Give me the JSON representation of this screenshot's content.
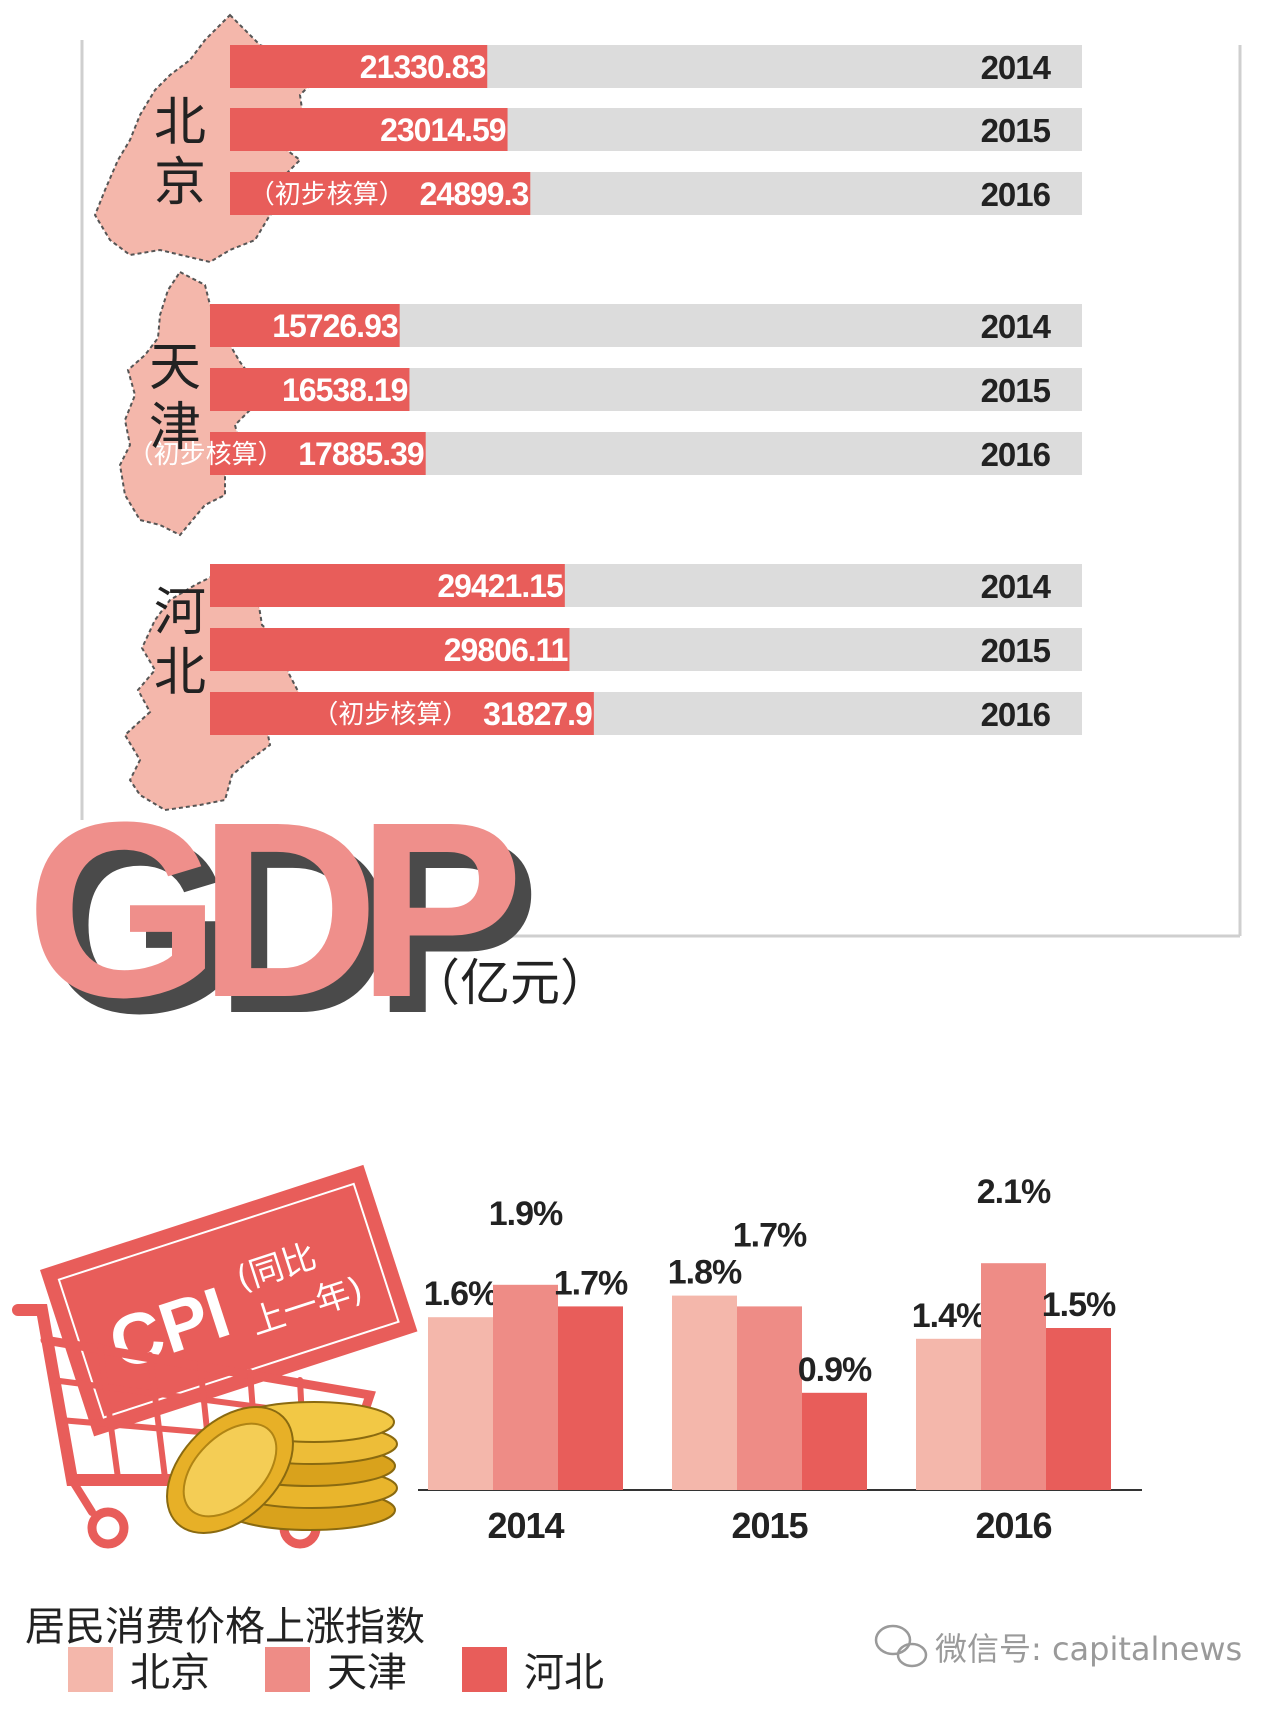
{
  "colors": {
    "beijing": "#f4b7ab",
    "tianjin": "#ee8c86",
    "hebei": "#e85d5a",
    "bar_track": "#dcdcdc",
    "gdp_fill": "#ef8f8b",
    "gdp_shadow": "#4a4a4a",
    "frame": "#cfcfcf",
    "text_dark": "#222222",
    "logo_gray": "#999999"
  },
  "gdp": {
    "title": "GDP",
    "unit": "（亿元）",
    "preliminary_label": "（初步核算）",
    "regions": [
      {
        "name": "北京",
        "chars": [
          "北",
          "京"
        ]
      },
      {
        "name": "天津",
        "chars": [
          "天",
          "津"
        ]
      },
      {
        "name": "河北",
        "chars": [
          "河",
          "北"
        ]
      }
    ]
  },
  "cpi": {
    "title": "CPI",
    "subtitle_line1": "(同比",
    "subtitle_line2": "上一年)",
    "caption": "居民消费价格上涨指数"
  },
  "legend": [
    {
      "name": "北京",
      "color": "#f4b7ab"
    },
    {
      "name": "天津",
      "color": "#ee8c86"
    },
    {
      "name": "河北",
      "color": "#e85d5a"
    }
  ],
  "watermark": {
    "text": "微信号: capitalnews",
    "icon": "wechat-icon"
  },
  "chart_data": [
    {
      "type": "bar",
      "orientation": "horizontal",
      "title": "GDP",
      "unit": "（亿元）",
      "series": [
        {
          "name": "北京",
          "rows": [
            {
              "year": "2014",
              "value": 21330.83,
              "label": "21330.83",
              "note": ""
            },
            {
              "year": "2015",
              "value": 23014.59,
              "label": "23014.59",
              "note": ""
            },
            {
              "year": "2016",
              "value": 24899.3,
              "label": "24899.3",
              "note": "（初步核算）"
            }
          ]
        },
        {
          "name": "天津",
          "rows": [
            {
              "year": "2014",
              "value": 15726.93,
              "label": "15726.93",
              "note": ""
            },
            {
              "year": "2015",
              "value": 16538.19,
              "label": "16538.19",
              "note": ""
            },
            {
              "year": "2016",
              "value": 17885.39,
              "label": "17885.39",
              "note": "（初步核算）"
            }
          ]
        },
        {
          "name": "河北",
          "rows": [
            {
              "year": "2014",
              "value": 29421.15,
              "label": "29421.15",
              "note": ""
            },
            {
              "year": "2015",
              "value": 29806.11,
              "label": "29806.11",
              "note": ""
            },
            {
              "year": "2016",
              "value": 31827.9,
              "label": "31827.9",
              "note": "（初步核算）"
            }
          ]
        }
      ],
      "xlim": [
        0,
        50500
      ],
      "grid": false
    },
    {
      "type": "bar",
      "orientation": "vertical",
      "title": "CPI",
      "categories": [
        "2014",
        "2015",
        "2016"
      ],
      "series": [
        {
          "name": "北京",
          "values": [
            1.6,
            1.8,
            1.4
          ],
          "labels": [
            "1.6%",
            "1.8%",
            "1.4%"
          ]
        },
        {
          "name": "天津",
          "values": [
            1.9,
            1.7,
            2.1
          ],
          "labels": [
            "1.9%",
            "1.7%",
            "2.1%"
          ]
        },
        {
          "name": "河北",
          "values": [
            1.7,
            0.9,
            1.5
          ],
          "labels": [
            "1.7%",
            "0.9%",
            "1.5%"
          ]
        }
      ],
      "ylim": [
        0,
        2.25
      ],
      "legend": "bottom-left",
      "grid": false
    }
  ]
}
